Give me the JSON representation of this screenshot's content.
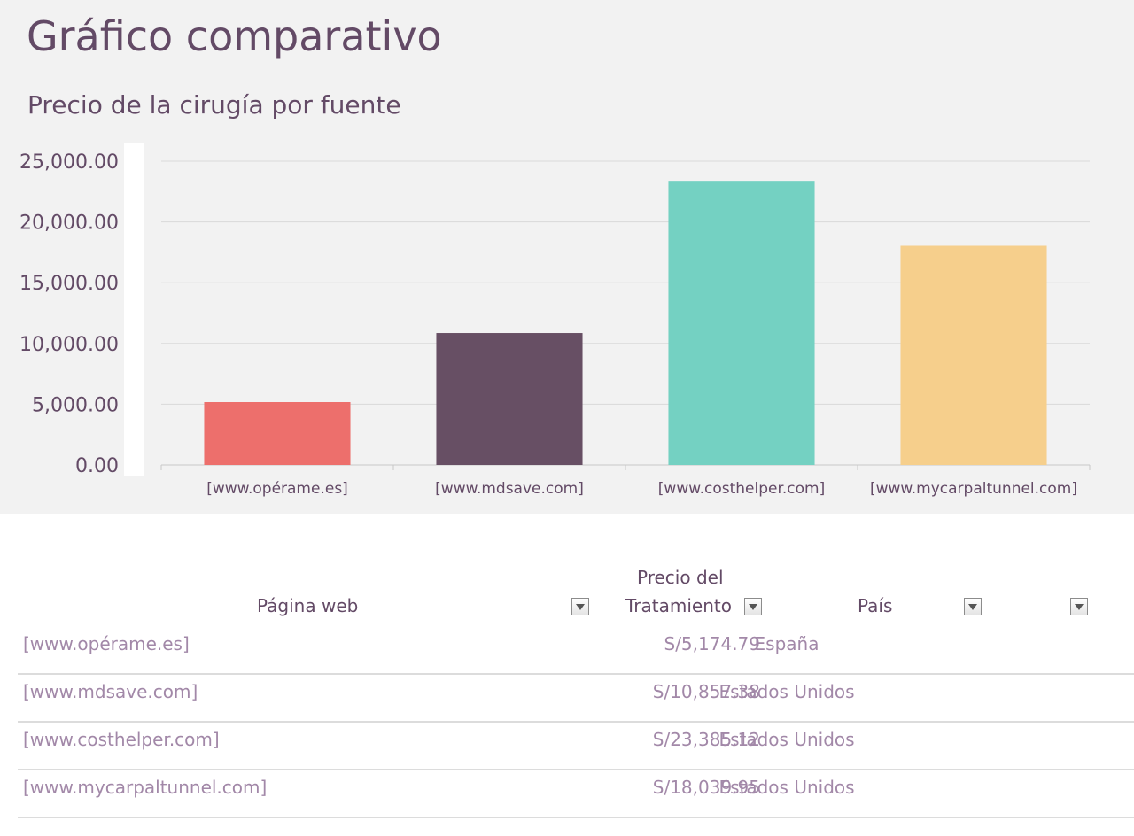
{
  "page": {
    "title": "Gráfico comparativo"
  },
  "chart_data": {
    "type": "bar",
    "title": "Precio de la cirugía por fuente",
    "categories": [
      "[www.opérame.es]",
      "[www.mdsave.com]",
      "[www.costhelper.com]",
      "[www.mycarpaltunnel.com]"
    ],
    "values": [
      5174.79,
      10857.38,
      23385.12,
      18039.95
    ],
    "colors": [
      "#ed6f6c",
      "#674f64",
      "#74d1c2",
      "#f6cf8c"
    ],
    "ylim": [
      0,
      25000
    ],
    "yticks": [
      "0.00",
      "5,000.00",
      "10,000.00",
      "15,000.00",
      "20,000.00",
      "25,000.00"
    ],
    "ytick_values": [
      0,
      5000,
      10000,
      15000,
      20000,
      25000
    ],
    "grid": true,
    "xlabel": "",
    "ylabel": ""
  },
  "table": {
    "headers": {
      "web": "Página web",
      "price_line1": "Precio del",
      "price_line2": "Tratamiento",
      "country": "País"
    },
    "rows": [
      {
        "web": "[www.opérame.es]",
        "price": "S/5,174.79",
        "country": "España"
      },
      {
        "web": "[www.mdsave.com]",
        "price": "S/10,857.38",
        "country": "Estados Unidos"
      },
      {
        "web": "[www.costhelper.com]",
        "price": "S/23,385.12",
        "country": "Estados Unidos"
      },
      {
        "web": "[www.mycarpaltunnel.com]",
        "price": "S/18,039.95",
        "country": "Estados Unidos"
      }
    ]
  }
}
